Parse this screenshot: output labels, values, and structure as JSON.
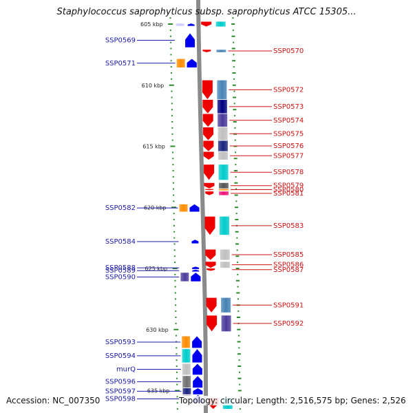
{
  "title": "Staphylococcus saprophyticus subsp. saprophyticus ATCC 15305...",
  "footer": {
    "accession": "Accession: NC_007350",
    "topology": "Topology: circular; Length: 2,516,575 bp; Genes: 2,526"
  },
  "colors": {
    "backbone": "#8a8a8a",
    "tick": "#2a8a2a",
    "label_left": "#1a1aa8",
    "label_right": "#cc1111",
    "forward_gene": "#0000ee",
    "reverse_gene": "#ee0000"
  },
  "scale": {
    "unit": "kbp",
    "ticks": [
      {
        "pos": 605,
        "label": "605 kbp"
      },
      {
        "pos": 610,
        "label": "610 kbp"
      },
      {
        "pos": 615,
        "label": "615 kbp"
      },
      {
        "pos": 620,
        "label": "620 kbp"
      },
      {
        "pos": 625,
        "label": "625 kbp"
      },
      {
        "pos": 630,
        "label": "630 kbp"
      },
      {
        "pos": 635,
        "label": "635 kbp"
      }
    ]
  },
  "genes_forward": [
    {
      "start": 604.95,
      "end": 605.15,
      "cog": "#ccccff"
    },
    {
      "start": 605.75,
      "end": 606.9,
      "cog": "#0000ee",
      "label": "SSP0569"
    },
    {
      "start": 607.85,
      "end": 608.55,
      "cog": "#ff8c00",
      "label": "SSP0571"
    },
    {
      "start": 607.85,
      "end": 608.55,
      "cog": "#0000ee",
      "second": true
    },
    {
      "start": 619.75,
      "end": 620.35,
      "cog": "#ff8c00",
      "label": "SSP0582"
    },
    {
      "start": 619.75,
      "end": 620.35,
      "cog": "#0000ee",
      "second": true
    },
    {
      "start": 622.65,
      "end": 622.95,
      "cog": "#0000ee",
      "label": "SSP0584"
    },
    {
      "start": 624.85,
      "end": 625.05,
      "cog": "#0000ee",
      "label": "SSP0588"
    },
    {
      "start": 625.1,
      "end": 625.25,
      "cog": "#0000ee",
      "label": "SSP0589"
    },
    {
      "start": 625.35,
      "end": 626.05,
      "cog": "#4b3a9a",
      "label": "SSP0590"
    },
    {
      "start": 625.35,
      "end": 626.05,
      "cog": "#0000ee",
      "second": true
    },
    {
      "start": 630.55,
      "end": 631.5,
      "cog": "#ff8c00",
      "label": "SSP0593"
    },
    {
      "start": 631.6,
      "end": 632.7,
      "cog": "#00cccc",
      "label": "SSP0594"
    },
    {
      "start": 632.8,
      "end": 633.7,
      "cog": "#c0c0c0",
      "label": "murQ"
    },
    {
      "start": 633.8,
      "end": 634.75,
      "cog": "#707070",
      "label": "SSP0596"
    },
    {
      "start": 634.8,
      "end": 635.3,
      "cog": "#1a237e",
      "label": "SSP0597"
    },
    {
      "start": 635.35,
      "end": 636.0,
      "cog": "#c0c0c0",
      "label": "SSP0598"
    }
  ],
  "genes_reverse": [
    {
      "start": 604.8,
      "end": 605.2,
      "cog": "#00cccc"
    },
    {
      "start": 607.1,
      "end": 607.3,
      "cog": "#4682b4",
      "label": "SSP0570"
    },
    {
      "start": 609.6,
      "end": 611.15,
      "cog": "#4682b4",
      "label": "SSP0572"
    },
    {
      "start": 611.2,
      "end": 612.3,
      "cog": "#000080",
      "label": "SSP0573"
    },
    {
      "start": 612.35,
      "end": 613.4,
      "cog": "#4b3a9a",
      "label": "SSP0574"
    },
    {
      "start": 613.45,
      "end": 614.5,
      "cog": "#c0c0c0",
      "label": "SSP0575"
    },
    {
      "start": 614.55,
      "end": 615.4,
      "cog": "#1a237e",
      "label": "SSP0576"
    },
    {
      "start": 615.45,
      "end": 616.1,
      "cog": "#c0c0c0",
      "label": "SSP0577"
    },
    {
      "start": 616.5,
      "end": 617.75,
      "cog": "#00cccc",
      "label": "SSP0578"
    },
    {
      "start": 618.0,
      "end": 618.45,
      "cog": "#555555",
      "label": "SSP0579"
    },
    {
      "start": 618.5,
      "end": 618.6,
      "cog": "#ff8c00",
      "label": "SSP0580"
    },
    {
      "start": 618.7,
      "end": 619.0,
      "cog": "#ee1177",
      "label": "SSP0581"
    },
    {
      "start": 620.75,
      "end": 622.25,
      "cog": "#00cccc",
      "label": "SSP0583"
    },
    {
      "start": 623.45,
      "end": 624.3,
      "cog": "#c0c0c0",
      "label": "SSP0585"
    },
    {
      "start": 624.45,
      "end": 624.95,
      "cog": "#c0c0c0",
      "label": "SSP0586"
    },
    {
      "start": 625.0,
      "end": 625.2,
      "cog": "#ee0000",
      "label": "SSP0587"
    },
    {
      "start": 627.4,
      "end": 628.6,
      "cog": "#4682b4",
      "label": "SSP0591"
    },
    {
      "start": 628.85,
      "end": 630.15,
      "cog": "#4b3a9a",
      "label": "SSP0592"
    },
    {
      "start": 635.6,
      "end": 636.5,
      "cog": "#00cccc"
    }
  ]
}
